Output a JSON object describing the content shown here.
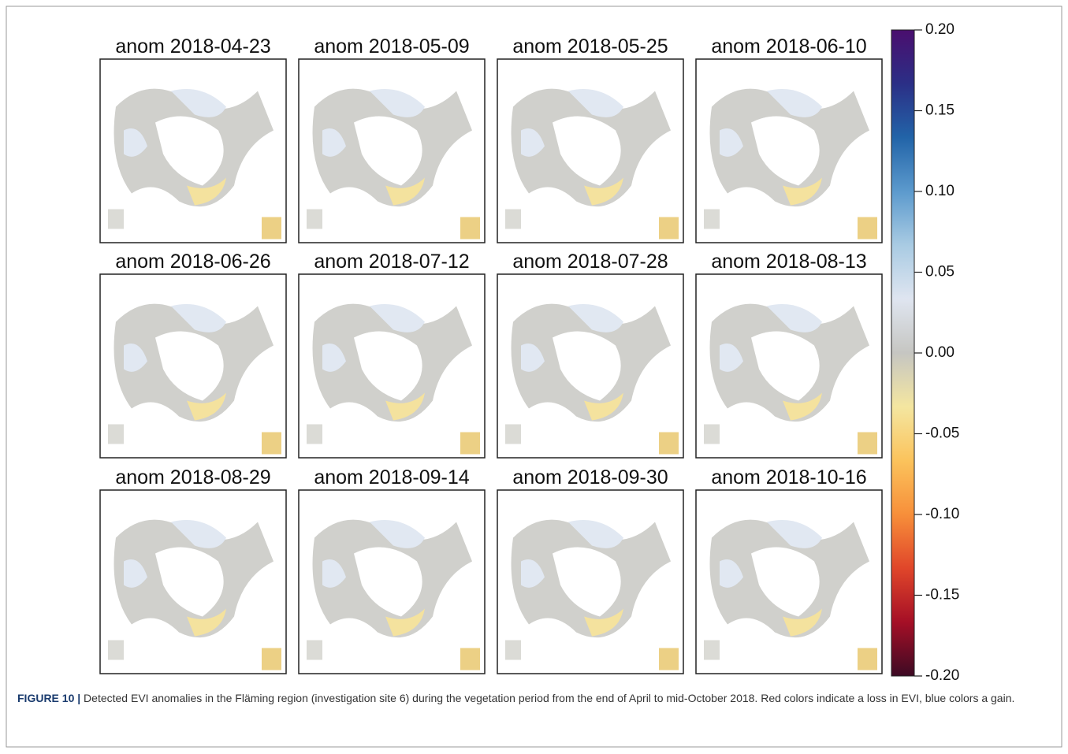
{
  "figure": {
    "panel_titles": [
      "anom 2018-04-23",
      "anom 2018-05-09",
      "anom 2018-05-25",
      "anom 2018-06-10",
      "anom 2018-06-26",
      "anom 2018-07-12",
      "anom 2018-07-28",
      "anom 2018-08-13",
      "anom 2018-08-29",
      "anom 2018-09-14",
      "anom 2018-09-30",
      "anom 2018-10-16"
    ],
    "colorbar": {
      "lim": [
        -0.2,
        0.2
      ],
      "ticks": [
        {
          "value": 0.2,
          "label": "0.20"
        },
        {
          "value": 0.15,
          "label": "0.15"
        },
        {
          "value": 0.1,
          "label": "0.10"
        },
        {
          "value": 0.05,
          "label": "0.05"
        },
        {
          "value": 0,
          "label": "0.00"
        },
        {
          "value": -0.05,
          "label": "-0.05"
        },
        {
          "value": -0.1,
          "label": "-0.10"
        },
        {
          "value": -0.15,
          "label": "-0.15"
        },
        {
          "value": -0.2,
          "label": "-0.20"
        }
      ],
      "colors": [
        "#3d0a24",
        "#a50f26",
        "#e0462a",
        "#f78f3a",
        "#fbc35c",
        "#f4e6a0",
        "#c6c6c2",
        "#dfe5f0",
        "#a9cbe3",
        "#5c9acd",
        "#2264a8",
        "#2b2f86",
        "#4a0e6e"
      ]
    }
  },
  "caption": {
    "label": "FIGURE 10 |",
    "text": " Detected EVI anomalies in the Fläming region (investigation site 6) during the vegetation period from the end of April to mid-October 2018. Red colors indicate a loss in EVI, blue colors a gain."
  }
}
